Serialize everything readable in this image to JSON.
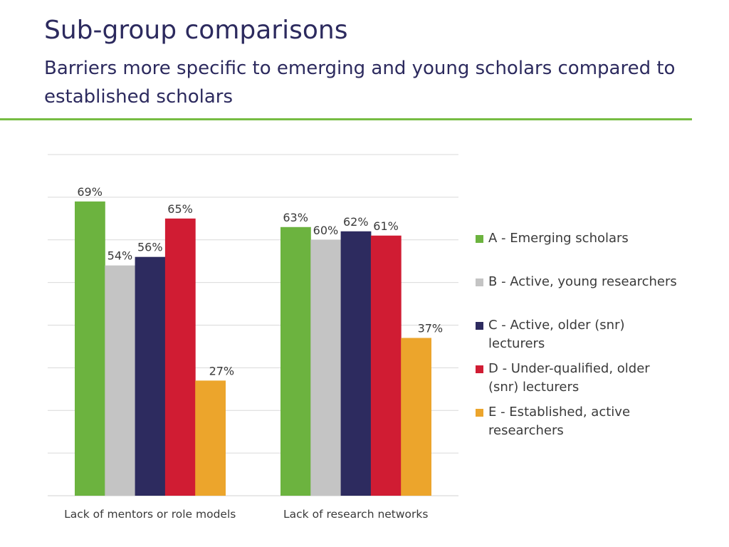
{
  "title": "Sub-group comparisons",
  "subtitle": "Barriers more specific to emerging and young scholars compared to established scholars",
  "colors": {
    "title": "#2c2a5e",
    "rule": "#76bc43",
    "gridline": "#d9d9d9"
  },
  "chart_data": {
    "type": "bar",
    "categories": [
      "Lack of mentors or role models",
      "Lack of research networks"
    ],
    "series": [
      {
        "name": "A - Emerging scholars",
        "values": [
          69,
          63
        ],
        "color": "#6cb33f"
      },
      {
        "name": "B - Active, young researchers",
        "values": [
          54,
          60
        ],
        "color": "#c4c4c4"
      },
      {
        "name": "C - Active, older (snr) lecturers",
        "values": [
          56,
          62
        ],
        "color": "#2d2b5f"
      },
      {
        "name": "D - Under-qualified, older (snr) lecturers",
        "values": [
          65,
          61
        ],
        "color": "#d01c33"
      },
      {
        "name": "E - Established, active researchers",
        "values": [
          27,
          37
        ],
        "color": "#eca52c"
      }
    ],
    "data_labels": [
      [
        "69%",
        "63%"
      ],
      [
        "54%",
        "60%"
      ],
      [
        "56%",
        "62%"
      ],
      [
        "65%",
        "61%"
      ],
      [
        "27%",
        "37%"
      ]
    ],
    "ylim": [
      0,
      80
    ],
    "grid": true,
    "legend_position": "right",
    "xlabel": "",
    "ylabel": ""
  }
}
